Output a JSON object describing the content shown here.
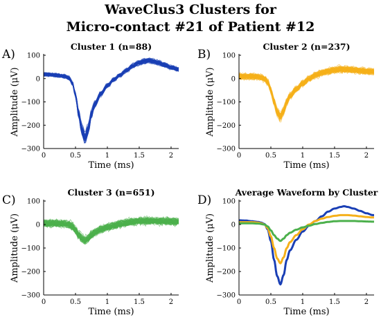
{
  "figure": {
    "title_line1": "WaveClus3 Clusters for",
    "title_line2": "Micro-contact #21 of Patient #12"
  },
  "chart_data": [
    {
      "panel": "A)",
      "type": "line",
      "title": "Cluster 1 (n=88)",
      "xlabel": "Time (ms)",
      "ylabel": "Amplitude (μV)",
      "xlim": [
        0,
        2.12
      ],
      "ylim": [
        -300,
        100
      ],
      "xticks": [
        0,
        0.5,
        1,
        1.5,
        2
      ],
      "xticklabels": [
        "0",
        "0.5",
        "1",
        "1.5",
        "2"
      ],
      "yticks": [
        -300,
        -200,
        -100,
        0,
        100
      ],
      "yticklabels": [
        "−300",
        "−200",
        "−100",
        "0",
        "100"
      ],
      "color": "#1a3fb5",
      "series": [
        {
          "x": [
            0.0,
            0.1,
            0.2,
            0.3,
            0.35,
            0.4,
            0.45,
            0.5,
            0.55,
            0.6,
            0.65,
            0.7,
            0.75,
            0.8,
            0.9,
            1.0,
            1.1,
            1.2,
            1.3,
            1.4,
            1.5,
            1.6,
            1.65,
            1.7,
            1.8,
            1.9,
            2.0,
            2.1
          ],
          "values": [
            18,
            17,
            14,
            11,
            8,
            2,
            -20,
            -70,
            -150,
            -220,
            -255,
            -215,
            -150,
            -110,
            -65,
            -30,
            -5,
            15,
            35,
            55,
            68,
            75,
            78,
            75,
            68,
            58,
            48,
            40
          ]
        }
      ]
    },
    {
      "panel": "B)",
      "type": "line",
      "title": "Cluster 2 (n=237)",
      "xlabel": "Time (ms)",
      "ylabel": "Amplitude (μV)",
      "xlim": [
        0,
        2.12
      ],
      "ylim": [
        -300,
        100
      ],
      "xticks": [
        0,
        0.5,
        1,
        1.5,
        2
      ],
      "xticklabels": [
        "0",
        "0.5",
        "1",
        "1.5",
        "2"
      ],
      "yticks": [
        -300,
        -200,
        -100,
        0,
        100
      ],
      "yticklabels": [
        "−300",
        "−200",
        "−100",
        "0",
        "100"
      ],
      "color": "#f5b01a",
      "series": [
        {
          "x": [
            0.0,
            0.1,
            0.2,
            0.3,
            0.35,
            0.4,
            0.45,
            0.5,
            0.55,
            0.6,
            0.65,
            0.7,
            0.75,
            0.8,
            0.9,
            1.0,
            1.1,
            1.2,
            1.3,
            1.4,
            1.5,
            1.6,
            1.7,
            1.8,
            1.9,
            2.0,
            2.1
          ],
          "values": [
            10,
            10,
            10,
            8,
            5,
            0,
            -15,
            -50,
            -100,
            -145,
            -165,
            -140,
            -100,
            -75,
            -45,
            -20,
            0,
            15,
            25,
            32,
            37,
            40,
            40,
            38,
            35,
            32,
            30
          ]
        }
      ]
    },
    {
      "panel": "C)",
      "type": "line",
      "title": "Cluster 3 (n=651)",
      "xlabel": "Time (ms)",
      "ylabel": "Amplitude (μV)",
      "xlim": [
        0,
        2.12
      ],
      "ylim": [
        -300,
        100
      ],
      "xticks": [
        0,
        0.5,
        1,
        1.5,
        2
      ],
      "xticklabels": [
        "0",
        "0.5",
        "1",
        "1.5",
        "2"
      ],
      "yticks": [
        -300,
        -200,
        -100,
        0,
        100
      ],
      "yticklabels": [
        "−300",
        "−200",
        "−100",
        "0",
        "100"
      ],
      "color": "#4cb04c",
      "series": [
        {
          "x": [
            0.0,
            0.1,
            0.2,
            0.3,
            0.4,
            0.45,
            0.5,
            0.55,
            0.6,
            0.65,
            0.7,
            0.75,
            0.8,
            0.9,
            1.0,
            1.1,
            1.2,
            1.3,
            1.4,
            1.5,
            1.6,
            1.7,
            1.8,
            1.9,
            2.0,
            2.1
          ],
          "values": [
            5,
            5,
            5,
            4,
            0,
            -8,
            -25,
            -45,
            -60,
            -70,
            -60,
            -45,
            -35,
            -22,
            -12,
            -5,
            2,
            7,
            11,
            14,
            15,
            15,
            15,
            14,
            13,
            12
          ]
        }
      ]
    },
    {
      "panel": "D)",
      "type": "line",
      "title": "Average Waveform by Cluster",
      "xlabel": "Time (ms)",
      "ylabel": "Amplitude (μV)",
      "xlim": [
        0,
        2.12
      ],
      "ylim": [
        -300,
        100
      ],
      "xticks": [
        0,
        0.5,
        1,
        1.5,
        2
      ],
      "xticklabels": [
        "0",
        "0.5",
        "1",
        "1.5",
        "2"
      ],
      "yticks": [
        -300,
        -200,
        -100,
        0,
        100
      ],
      "yticklabels": [
        "−300",
        "−200",
        "−100",
        "0",
        "100"
      ],
      "series": [
        {
          "color": "#1a3fb5",
          "x": [
            0.0,
            0.1,
            0.2,
            0.3,
            0.35,
            0.4,
            0.45,
            0.5,
            0.55,
            0.6,
            0.65,
            0.7,
            0.75,
            0.8,
            0.9,
            1.0,
            1.1,
            1.2,
            1.3,
            1.4,
            1.5,
            1.6,
            1.65,
            1.7,
            1.8,
            1.9,
            2.0,
            2.1
          ],
          "values": [
            18,
            17,
            14,
            11,
            8,
            2,
            -20,
            -70,
            -150,
            -220,
            -255,
            -215,
            -150,
            -110,
            -65,
            -30,
            -5,
            15,
            35,
            55,
            68,
            75,
            78,
            75,
            68,
            58,
            48,
            40
          ]
        },
        {
          "color": "#f5b01a",
          "x": [
            0.0,
            0.1,
            0.2,
            0.3,
            0.35,
            0.4,
            0.45,
            0.5,
            0.55,
            0.6,
            0.65,
            0.7,
            0.75,
            0.8,
            0.9,
            1.0,
            1.1,
            1.2,
            1.3,
            1.4,
            1.5,
            1.6,
            1.7,
            1.8,
            1.9,
            2.0,
            2.1
          ],
          "values": [
            10,
            10,
            10,
            8,
            5,
            0,
            -15,
            -50,
            -100,
            -145,
            -165,
            -140,
            -100,
            -75,
            -45,
            -20,
            0,
            15,
            25,
            32,
            37,
            40,
            40,
            38,
            35,
            32,
            30
          ]
        },
        {
          "color": "#4cb04c",
          "x": [
            0.0,
            0.1,
            0.2,
            0.3,
            0.4,
            0.45,
            0.5,
            0.55,
            0.6,
            0.65,
            0.7,
            0.75,
            0.8,
            0.9,
            1.0,
            1.1,
            1.2,
            1.3,
            1.4,
            1.5,
            1.6,
            1.7,
            1.8,
            1.9,
            2.0,
            2.1
          ],
          "values": [
            5,
            5,
            5,
            4,
            0,
            -8,
            -25,
            -45,
            -60,
            -70,
            -60,
            -45,
            -35,
            -22,
            -12,
            -5,
            2,
            7,
            11,
            14,
            15,
            15,
            15,
            14,
            13,
            12
          ]
        }
      ]
    }
  ]
}
